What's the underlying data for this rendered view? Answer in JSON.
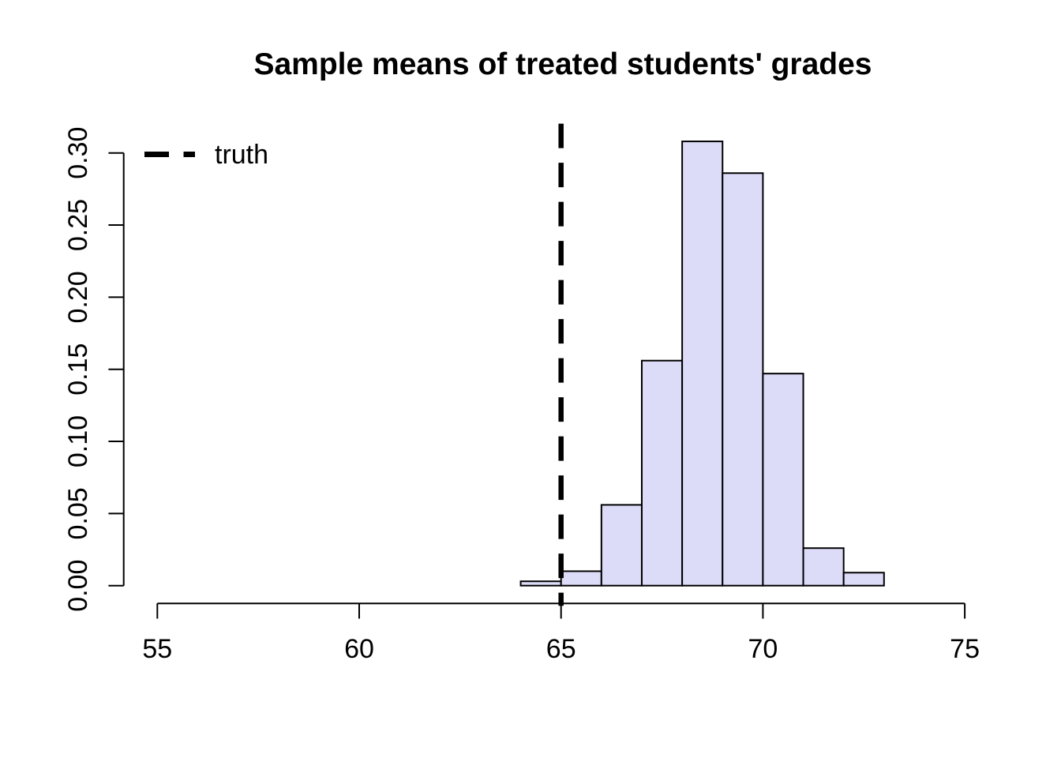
{
  "title": "Sample means of treated students' grades",
  "chart_data": {
    "type": "bar",
    "subtype": "histogram-density",
    "title": "Sample means of treated students' grades",
    "xlabel": "",
    "ylabel": "",
    "x_ticks": [
      55,
      60,
      65,
      70,
      75
    ],
    "y_ticks": [
      0.0,
      0.05,
      0.1,
      0.15,
      0.2,
      0.25,
      0.3
    ],
    "y_tick_labels": [
      "0.00",
      "0.05",
      "0.10",
      "0.15",
      "0.20",
      "0.25",
      "0.30"
    ],
    "xlim": [
      55,
      75
    ],
    "ylim": [
      0.0,
      0.3
    ],
    "grid": "off",
    "bin_width": 1,
    "bins": [
      {
        "x0": 64,
        "x1": 65,
        "density": 0.003
      },
      {
        "x0": 65,
        "x1": 66,
        "density": 0.01
      },
      {
        "x0": 66,
        "x1": 67,
        "density": 0.056
      },
      {
        "x0": 67,
        "x1": 68,
        "density": 0.156
      },
      {
        "x0": 68,
        "x1": 69,
        "density": 0.308
      },
      {
        "x0": 69,
        "x1": 70,
        "density": 0.286
      },
      {
        "x0": 70,
        "x1": 71,
        "density": 0.147
      },
      {
        "x0": 71,
        "x1": 72,
        "density": 0.026
      },
      {
        "x0": 72,
        "x1": 73,
        "density": 0.009
      }
    ],
    "truth_line": {
      "x": 65,
      "style": "dashed",
      "color": "#000000"
    },
    "legend": {
      "label": "truth",
      "position": "topleft",
      "line_style": "dashed",
      "line_color": "#000000"
    },
    "colors": {
      "bar_fill": "#dcdcf9",
      "bar_stroke": "#000000",
      "axis_color": "#000000",
      "text_color": "#000000",
      "background": "#ffffff"
    }
  }
}
